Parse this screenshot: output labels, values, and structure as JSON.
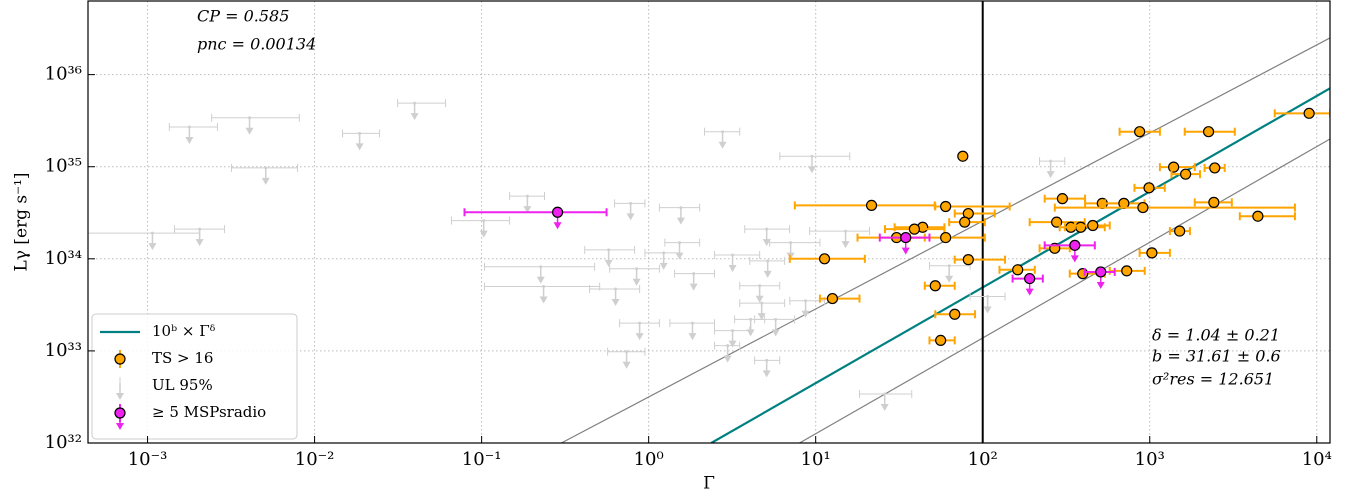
{
  "chart_data": {
    "type": "scatter",
    "xlabel": "Γ",
    "ylabel": "Lγ [erg s⁻¹]",
    "log_x": true,
    "log_y": true,
    "grid": true,
    "xlim": [
      0.00044,
      12000
    ],
    "ylim": [
      1e+32,
      6.3e+36
    ],
    "xticks": [
      {
        "value": 0.001,
        "label": "10⁻³"
      },
      {
        "value": 0.01,
        "label": "10⁻²"
      },
      {
        "value": 0.1,
        "label": "10⁻¹"
      },
      {
        "value": 1,
        "label": "10⁰"
      },
      {
        "value": 10,
        "label": "10¹"
      },
      {
        "value": 100,
        "label": "10²"
      },
      {
        "value": 1000,
        "label": "10³"
      },
      {
        "value": 10000,
        "label": "10⁴"
      }
    ],
    "yticks": [
      {
        "value": 1e+32,
        "label": "10³²"
      },
      {
        "value": 1e+33,
        "label": "10³³"
      },
      {
        "value": 1e+34,
        "label": "10³⁴"
      },
      {
        "value": 1e+35,
        "label": "10³⁵"
      },
      {
        "value": 1e+36,
        "label": "10³⁶"
      }
    ],
    "vline": 100,
    "legend_position": "lower left",
    "annotations": [
      "CP = 0.585",
      "pnc = 0.00134",
      "δ = 1.04 ± 0.21",
      "b = 31.61 ± 0.6",
      "σ²res = 12.651"
    ],
    "lines": [
      {
        "name": "10ᵇ × Γᵟ",
        "color": "#008080",
        "x": [
          2.37,
          12000
        ],
        "y": [
          1e+32,
          7.1e+35
        ]
      },
      {
        "color": "#808080",
        "x": [
          0.3,
          12000
        ],
        "y": [
          1e+32,
          2.5e+36
        ]
      },
      {
        "color": "#808080",
        "x": [
          8,
          12000
        ],
        "y": [
          1e+32,
          2e+35
        ]
      }
    ],
    "series": [
      {
        "name": "UL 95%",
        "color": "#cfcfcf",
        "upper_limit": true,
        "x": [
          0.00178,
          0.00408,
          0.0186,
          0.0397,
          0.0051,
          2.77,
          9.5,
          0.00107,
          0.00205,
          0.103,
          0.188,
          0.78,
          1.56,
          0.226,
          0.235,
          0.576,
          0.847,
          1.23,
          0.634,
          1.53,
          1.86,
          5.09,
          15.1,
          7.08,
          3.18,
          5.16,
          4.62,
          4.75,
          0.883,
          1.83,
          4.08,
          5.76,
          3.18,
          2.97,
          25.9,
          0.738,
          5.09,
          255,
          63,
          107,
          8.7
        ],
        "values": [
          2.7e+35,
          3.4e+35,
          2.3e+35,
          4.9e+35,
          9.7e+34,
          2.4e+35,
          1.3e+35,
          1.9e+34,
          2.1e+34,
          2.6e+34,
          4.8e+34,
          4e+34,
          3.6e+34,
          8.2e+33,
          5e+33,
          1.25e+34,
          7.8e+33,
          1.16e+34,
          4.7e+33,
          1.5e+34,
          6.9e+33,
          2.1e+34,
          2e+34,
          1.5e+34,
          1.1e+34,
          9.5e+33,
          5.1e+33,
          3.3e+33,
          2e+33,
          2e+33,
          2.2e+33,
          2.2e+33,
          1.66e+33,
          1.14e+33,
          3.4e+32,
          9.8e+32,
          7.9e+32,
          1.15e+35,
          8.4e+33,
          3.9e+33,
          3.5e+33
        ],
        "x_lower": [
          0.00135,
          0.00242,
          0.0147,
          0.0314,
          0.00318,
          2.16,
          6.1,
          0.00044,
          0.00145,
          0.066,
          0.147,
          0.625,
          1.16,
          0.104,
          0.104,
          0.414,
          0.584,
          0.95,
          0.443,
          1.25,
          1.43,
          3.76,
          9.2,
          5.3,
          2.48,
          4.03,
          3.51,
          3.51,
          0.67,
          1.34,
          3.27,
          4.31,
          2.48,
          2.48,
          18.3,
          0.568,
          4.31,
          219,
          48,
          84,
          7.0
        ],
        "x_upper": [
          0.00262,
          0.0081,
          0.0245,
          0.0608,
          0.0079,
          3.51,
          16,
          0.00205,
          0.00289,
          0.147,
          0.238,
          0.95,
          2.02,
          0.475,
          0.509,
          0.824,
          1.16,
          1.53,
          0.883,
          2.02,
          2.48,
          6.98,
          21,
          10.6,
          4.62,
          6.52,
          6.09,
          6.52,
          1.16,
          2.48,
          4.95,
          7.48,
          4.03,
          3.51,
          37.6,
          0.95,
          6.09,
          310,
          84,
          136,
          11.3
        ]
      },
      {
        "name": "TS > 16",
        "color": "#ffa500",
        "upper_limit": false,
        "x": [
          9000,
          870,
          2250,
          76,
          1390,
          1640,
          2450,
          990,
          300,
          520,
          700,
          910,
          2420,
          4440,
          21.6,
          60,
          82,
          78,
          277,
          337,
          386,
          456,
          43.7,
          39,
          30.5,
          60,
          1510,
          270,
          1030,
          82,
          11.3,
          162,
          397,
          728,
          52,
          12.6,
          68,
          56
        ],
        "values": [
          3.8e+35,
          2.4e+35,
          2.4e+35,
          1.3e+35,
          9.9e+34,
          8.3e+34,
          9.7e+34,
          5.9e+34,
          4.5e+34,
          4e+34,
          4e+34,
          3.6e+34,
          4.1e+34,
          2.9e+34,
          3.8e+34,
          3.7e+34,
          3.1e+34,
          2.5e+34,
          2.5e+34,
          2.2e+34,
          2.2e+34,
          2.3e+34,
          2.2e+34,
          2.1e+34,
          1.7e+34,
          1.7e+34,
          2e+34,
          1.3e+34,
          1.16e+34,
          9.8e+33,
          1e+34,
          7.6e+33,
          6.9e+33,
          7.4e+33,
          5.1e+33,
          3.7e+33,
          2.5e+33,
          1.3e+33
        ],
        "x_lower": [
          5600,
          660,
          1620,
          null,
          1150,
          1350,
          2130,
          810,
          235,
          410,
          540,
          270,
          1860,
          3460,
          7.5,
          52,
          68,
          63,
          191,
          289,
          310,
          356,
          29.7,
          26,
          17.8,
          36.6,
          1320,
          219,
          870,
          68,
          7.0,
          126,
          332,
          576,
          45,
          10.6,
          52,
          48
        ],
        "x_upper": [
          12000,
          1150,
          3230,
          null,
          1860,
          2000,
          2810,
          1230,
          410,
          710,
          930,
          7400,
          3100,
          7400,
          51.6,
          145,
          118,
          103,
          408,
          408,
          538,
          576,
          59,
          59,
          45,
          103,
          1740,
          332,
          1320,
          136,
          19.7,
          205,
          538,
          933,
          68,
          18.3,
          90,
          68
        ]
      },
      {
        "name": "≥ 5 MSPsradio",
        "color": "#ee22ee",
        "upper_limit": true,
        "x": [
          0.285,
          34.6,
          356,
          191,
          509
        ],
        "values": [
          3.2e+34,
          1.7e+34,
          1.4e+34,
          6.1e+33,
          7.2e+33
        ],
        "x_lower": [
          0.079,
          24.2,
          235,
          151,
          408
        ],
        "x_upper": [
          0.56,
          48,
          469,
          229,
          617
        ]
      }
    ]
  }
}
